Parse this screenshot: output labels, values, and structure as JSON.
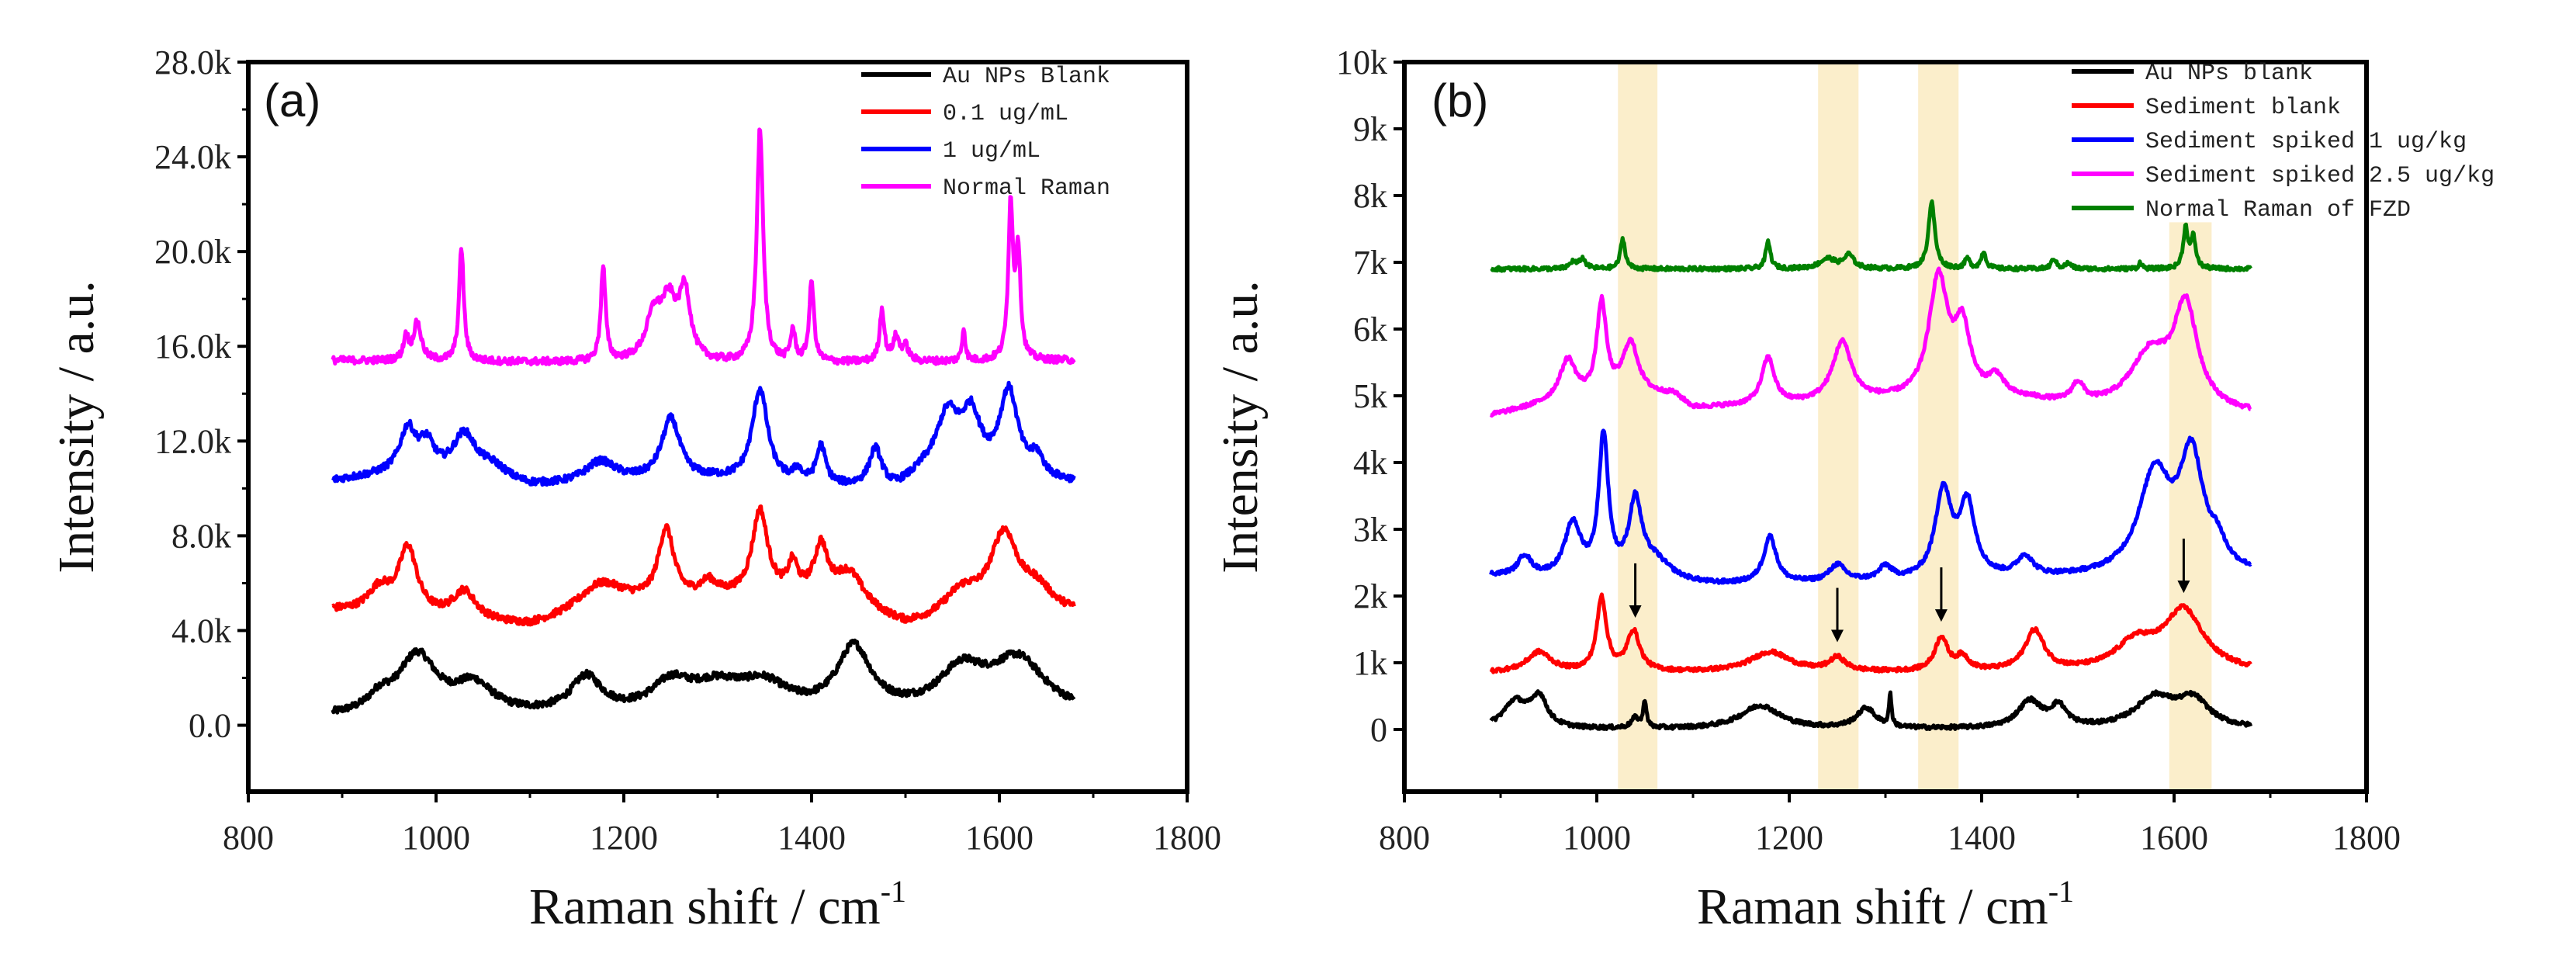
{
  "chart_data": [
    {
      "type": "line",
      "panel_label": "(a)",
      "xlabel": "Raman shift / cm",
      "xlabel_sup": "-1",
      "ylabel": "Intensity / a.u.",
      "xlim": [
        800,
        1800
      ],
      "ylim": [
        -2.8,
        28
      ],
      "xticks": [
        800,
        1000,
        1200,
        1400,
        1600,
        1800
      ],
      "xtick_labels": [
        "800",
        "1000",
        "1200",
        "1400",
        "1600",
        "1800"
      ],
      "yticks": [
        0,
        4,
        8,
        12,
        16,
        20,
        24,
        28
      ],
      "ytick_labels": [
        "0.0",
        "4.0k",
        "8.0k",
        "12.0k",
        "16.0k",
        "20.0k",
        "24.0k",
        "28.0k"
      ],
      "y_units": "k",
      "legend_position": "top-right",
      "noise": 0.15,
      "series": [
        {
          "name": "Au NPs Blank",
          "color": "#000000",
          "x_range": [
            890,
            1680
          ],
          "baseline": [
            [
              890,
              0.3
            ],
            [
              1680,
              0.4
            ]
          ],
          "peaks": [
            [
              940,
              0.6,
              15
            ],
            [
              980,
              2.5,
              25
            ],
            [
              1040,
              1.2,
              25
            ],
            [
              1160,
              1.5,
              20
            ],
            [
              1250,
              1.1,
              25
            ],
            [
              1300,
              1.1,
              40
            ],
            [
              1350,
              1.0,
              30
            ],
            [
              1445,
              2.7,
              22
            ],
            [
              1560,
              1.7,
              30
            ],
            [
              1620,
              2.2,
              35
            ]
          ]
        },
        {
          "name": "0.1 ug/mL",
          "color": "#ff0000",
          "x_range": [
            890,
            1680
          ],
          "baseline": [
            [
              890,
              4.8
            ],
            [
              1100,
              4.1
            ],
            [
              1200,
              4.9
            ],
            [
              1300,
              5.3
            ],
            [
              1400,
              5.3
            ],
            [
              1500,
              4.0
            ],
            [
              1680,
              4.6
            ]
          ],
          "peaks": [
            [
              940,
              1.0,
              15
            ],
            [
              970,
              2.8,
              12
            ],
            [
              1030,
              1.2,
              15
            ],
            [
              1175,
              1.2,
              30
            ],
            [
              1245,
              3.0,
              10
            ],
            [
              1290,
              0.6,
              10
            ],
            [
              1345,
              3.6,
              10
            ],
            [
              1380,
              1.2,
              6
            ],
            [
              1410,
              2.0,
              8
            ],
            [
              1440,
              1.5,
              20
            ],
            [
              1560,
              1.2,
              25
            ],
            [
              1605,
              3.4,
              18
            ],
            [
              1640,
              1.0,
              20
            ]
          ]
        },
        {
          "name": "1 ug/mL",
          "color": "#0000ff",
          "x_range": [
            890,
            1680
          ],
          "baseline": [
            [
              890,
              10.3
            ],
            [
              960,
              10.6
            ],
            [
              1100,
              10.0
            ],
            [
              1200,
              10.2
            ],
            [
              1300,
              10.3
            ],
            [
              1430,
              10.0
            ],
            [
              1490,
              9.9
            ],
            [
              1520,
              10.5
            ],
            [
              1680,
              10.2
            ]
          ],
          "peaks": [
            [
              970,
              1.8,
              10
            ],
            [
              990,
              1.2,
              10
            ],
            [
              1030,
              1.8,
              15
            ],
            [
              1060,
              0.6,
              20
            ],
            [
              1175,
              0.9,
              20
            ],
            [
              1250,
              2.6,
              12
            ],
            [
              1345,
              3.9,
              10
            ],
            [
              1385,
              0.5,
              5
            ],
            [
              1410,
              1.6,
              6
            ],
            [
              1468,
              1.6,
              8
            ],
            [
              1545,
              2.5,
              15
            ],
            [
              1570,
              2.3,
              12
            ],
            [
              1610,
              3.6,
              12
            ],
            [
              1640,
              0.8,
              8
            ]
          ]
        },
        {
          "name": "Normal Raman",
          "color": "#ff00ff",
          "x_range": [
            890,
            1680
          ],
          "baseline": [
            [
              890,
              15.4
            ],
            [
              1300,
              15.25
            ],
            [
              1680,
              15.4
            ]
          ],
          "peaks": [
            [
              968,
              1.0,
              3
            ],
            [
              980,
              1.6,
              5
            ],
            [
              1027,
              4.8,
              3
            ],
            [
              1178,
              4.0,
              3
            ],
            [
              1232,
              1.8,
              10
            ],
            [
              1248,
              2.3,
              10
            ],
            [
              1265,
              2.8,
              7
            ],
            [
              1345,
              9.9,
              4
            ],
            [
              1380,
              1.3,
              3
            ],
            [
              1400,
              3.4,
              3
            ],
            [
              1475,
              2.2,
              3
            ],
            [
              1490,
              1.0,
              4
            ],
            [
              1500,
              0.6,
              4
            ],
            [
              1562,
              1.4,
              2
            ],
            [
              1612,
              6.5,
              3
            ],
            [
              1620,
              4.5,
              3
            ]
          ]
        }
      ]
    },
    {
      "type": "line",
      "panel_label": "(b)",
      "xlabel": "Raman shift / cm",
      "xlabel_sup": "-1",
      "ylabel": "Intensity / a.u.",
      "xlim": [
        800,
        1800
      ],
      "ylim": [
        -0.93,
        10
      ],
      "xticks": [
        800,
        1000,
        1200,
        1400,
        1600,
        1800
      ],
      "xtick_labels": [
        "800",
        "1000",
        "1200",
        "1400",
        "1600",
        "1800"
      ],
      "yticks": [
        0,
        1,
        2,
        3,
        4,
        5,
        6,
        7,
        8,
        9,
        10
      ],
      "ytick_labels": [
        "0",
        "1k",
        "2k",
        "3k",
        "4k",
        "5k",
        "6k",
        "7k",
        "8k",
        "9k",
        "10k"
      ],
      "y_units": "k",
      "legend_position": "top-right",
      "noise": 0.03,
      "highlight_bands": [
        [
          1022,
          1063,
          10
        ],
        [
          1230,
          1272,
          10
        ],
        [
          1334,
          1376,
          10
        ],
        [
          1595,
          1639,
          7.6
        ]
      ],
      "highlight_color": "#fbeecb",
      "arrows_x": [
        1040,
        1250,
        1358,
        1610
      ],
      "series": [
        {
          "name": "Au NPs blank",
          "color": "#000000",
          "x_range": [
            890,
            1680
          ],
          "baseline": [
            [
              890,
              0.0
            ],
            [
              1680,
              0.0
            ]
          ],
          "peaks": [
            [
              915,
              0.4,
              15
            ],
            [
              940,
              0.45,
              10
            ],
            [
              1040,
              0.15,
              5
            ],
            [
              1050,
              0.4,
              2
            ],
            [
              1170,
              0.35,
              25
            ],
            [
              1280,
              0.3,
              12
            ],
            [
              1305,
              0.5,
              1.5
            ],
            [
              1450,
              0.4,
              15
            ],
            [
              1480,
              0.3,
              10
            ],
            [
              1580,
              0.45,
              25
            ],
            [
              1620,
              0.4,
              20
            ]
          ]
        },
        {
          "name": "Sediment blank",
          "color": "#ff0000",
          "x_range": [
            890,
            1680
          ],
          "baseline": [
            [
              890,
              0.85
            ],
            [
              1680,
              0.85
            ]
          ],
          "peaks": [
            [
              940,
              0.3,
              15
            ],
            [
              1005,
              1.1,
              6
            ],
            [
              1038,
              0.6,
              8
            ],
            [
              1180,
              0.3,
              25
            ],
            [
              1250,
              0.2,
              10
            ],
            [
              1358,
              0.5,
              8
            ],
            [
              1380,
              0.2,
              8
            ],
            [
              1455,
              0.6,
              12
            ],
            [
              1560,
              0.4,
              25
            ],
            [
              1610,
              0.9,
              25
            ]
          ]
        },
        {
          "name": "Sediment spiked 1 ug/kg",
          "color": "#0000ff",
          "x_range": [
            890,
            1680
          ],
          "baseline": [
            [
              890,
              2.3
            ],
            [
              1120,
              2.15
            ],
            [
              1680,
              2.3
            ]
          ],
          "peaks": [
            [
              925,
              0.3,
              8
            ],
            [
              975,
              0.8,
              10
            ],
            [
              1007,
              2.1,
              6
            ],
            [
              1040,
              1.1,
              8
            ],
            [
              1060,
              0.3,
              20
            ],
            [
              1180,
              0.7,
              8
            ],
            [
              1250,
              0.25,
              10
            ],
            [
              1300,
              0.2,
              8
            ],
            [
              1360,
              1.3,
              10
            ],
            [
              1385,
              1.1,
              10
            ],
            [
              1445,
              0.3,
              10
            ],
            [
              1580,
              1.5,
              20
            ],
            [
              1618,
              1.7,
              15
            ],
            [
              1645,
              0.3,
              10
            ]
          ]
        },
        {
          "name": "Sediment spiked 2.5 ug/kg",
          "color": "#ff00ff",
          "x_range": [
            890,
            1680
          ],
          "baseline": [
            [
              890,
              4.7
            ],
            [
              960,
              4.9
            ],
            [
              1080,
              5.0
            ],
            [
              1100,
              4.8
            ],
            [
              1300,
              4.9
            ],
            [
              1450,
              4.9
            ],
            [
              1500,
              4.8
            ],
            [
              1680,
              4.7
            ]
          ],
          "peaks": [
            [
              970,
              0.6,
              10
            ],
            [
              1005,
              1.4,
              6
            ],
            [
              1035,
              0.8,
              10
            ],
            [
              1178,
              0.7,
              8
            ],
            [
              1255,
              0.9,
              12
            ],
            [
              1355,
              1.8,
              12
            ],
            [
              1380,
              1.0,
              10
            ],
            [
              1415,
              0.3,
              10
            ],
            [
              1500,
              0.3,
              8
            ],
            [
              1575,
              0.8,
              25
            ],
            [
              1612,
              1.5,
              15
            ]
          ]
        },
        {
          "name": "Normal Raman of FZD",
          "color": "#008000",
          "x_range": [
            890,
            1680
          ],
          "baseline": [
            [
              890,
              6.9
            ],
            [
              1680,
              6.9
            ]
          ],
          "peaks": [
            [
              975,
              0.1,
              4
            ],
            [
              985,
              0.15,
              4
            ],
            [
              1027,
              0.45,
              3
            ],
            [
              1178,
              0.4,
              3
            ],
            [
              1240,
              0.15,
              10
            ],
            [
              1262,
              0.2,
              6
            ],
            [
              1348,
              1.0,
              4
            ],
            [
              1385,
              0.15,
              3
            ],
            [
              1402,
              0.25,
              3
            ],
            [
              1475,
              0.15,
              3
            ],
            [
              1490,
              0.08,
              4
            ],
            [
              1565,
              0.1,
              2
            ],
            [
              1612,
              0.6,
              3
            ],
            [
              1620,
              0.45,
              3
            ]
          ]
        }
      ]
    }
  ]
}
